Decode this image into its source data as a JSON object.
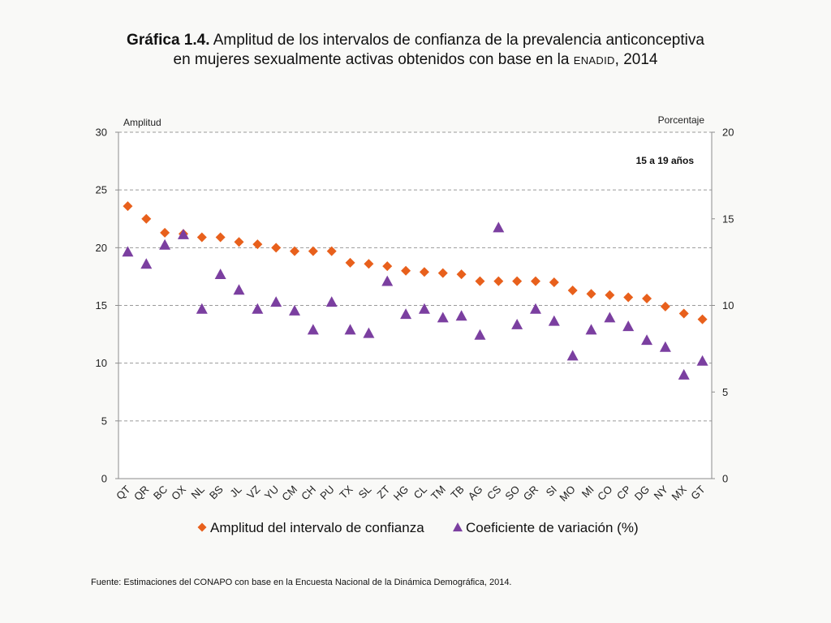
{
  "header": {
    "title_bold": "Gráfica 1.4.",
    "title_line1": "Amplitud de los intervalos de confianza de la prevalencia anticonceptiva",
    "title_line2_pre": "en mujeres sexualmente activas obtenidos con base en la",
    "title_line2_abbr": "ENADID",
    "title_line2_post": ", 2014"
  },
  "source_note": "Fuente: Estimaciones del CONAPO con base en la Encuesta Nacional de la Dinámica Demográfica, 2014.",
  "colors": {
    "series_amplitud": "#e8601c",
    "series_cv": "#7b3fa0",
    "grid": "#9a9a9a",
    "axis": "#8c8c8c"
  },
  "chart_data": {
    "type": "scatter",
    "annotation": "15 a 19 años",
    "left_axis_label": "Amplitud",
    "right_axis_label": "Porcentaje",
    "ylim_left": [
      0,
      30
    ],
    "yticks_left": [
      "0",
      "5",
      "10",
      "15",
      "20",
      "25",
      "30"
    ],
    "ylim_right": [
      0,
      20
    ],
    "yticks_right": [
      "0",
      "5",
      "10",
      "15",
      "20"
    ],
    "grid": true,
    "legend_position": "bottom",
    "categories": [
      "QT",
      "QR",
      "BC",
      "OX",
      "NL",
      "BS",
      "JL",
      "VZ",
      "YU",
      "CM",
      "CH",
      "PU",
      "TX",
      "SL",
      "ZT",
      "HG",
      "CL",
      "TM",
      "TB",
      "AG",
      "CS",
      "SO",
      "GR",
      "SI",
      "MO",
      "MI",
      "CO",
      "CP",
      "DG",
      "NY",
      "MX",
      "GT"
    ],
    "series": [
      {
        "name": "Amplitud del intervalo de confianza",
        "marker": "diamond",
        "axis": "left",
        "values": [
          23.6,
          22.5,
          21.3,
          21.2,
          20.9,
          20.9,
          20.5,
          20.3,
          20.0,
          19.7,
          19.7,
          19.7,
          18.7,
          18.6,
          18.4,
          18.0,
          17.9,
          17.8,
          17.7,
          17.1,
          17.1,
          17.1,
          17.1,
          17.0,
          16.3,
          16.0,
          15.9,
          15.7,
          15.6,
          14.9,
          14.3,
          13.8
        ]
      },
      {
        "name": "Coeficiente de variación (%)",
        "marker": "triangle",
        "axis": "right",
        "values": [
          13.1,
          12.4,
          13.5,
          14.1,
          9.8,
          11.8,
          10.9,
          9.8,
          10.2,
          9.7,
          8.6,
          10.2,
          8.6,
          8.4,
          11.4,
          9.5,
          9.8,
          9.3,
          9.4,
          8.3,
          14.5,
          8.9,
          9.8,
          9.1,
          7.1,
          8.6,
          9.3,
          8.8,
          8.0,
          7.6,
          6.0,
          6.8
        ]
      }
    ]
  }
}
